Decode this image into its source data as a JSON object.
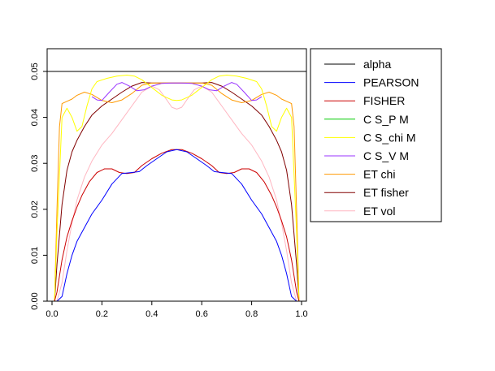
{
  "chart_data": {
    "type": "line",
    "title": "",
    "xlabel": "",
    "ylabel": "",
    "xlim": [
      0,
      1
    ],
    "ylim": [
      0,
      0.055
    ],
    "x_ticks": [
      "0.0",
      "0.2",
      "0.4",
      "0.6",
      "0.8",
      "1.0"
    ],
    "y_ticks": [
      "0.00",
      "0.01",
      "0.02",
      "0.03",
      "0.04",
      "0.05"
    ],
    "legend_position": "right",
    "grid": false,
    "hline": {
      "name": "alpha",
      "y": 0.05,
      "color": "#000000"
    },
    "series": [
      {
        "name": "alpha",
        "color": "#000000",
        "x": [
          0.0,
          1.0
        ],
        "y": [
          0.05,
          0.05
        ]
      },
      {
        "name": "PEARSON",
        "color": "#0000ff",
        "x": [
          0.0,
          0.02,
          0.04,
          0.06,
          0.08,
          0.1,
          0.13,
          0.16,
          0.2,
          0.24,
          0.28,
          0.32,
          0.35,
          0.38,
          0.42,
          0.46,
          0.5,
          0.54,
          0.58,
          0.62,
          0.65,
          0.68,
          0.72,
          0.76,
          0.8,
          0.84,
          0.87,
          0.9,
          0.92,
          0.94,
          0.96,
          0.98,
          1.0
        ],
        "y": [
          0.0,
          0.0,
          0.001,
          0.006,
          0.01,
          0.013,
          0.016,
          0.019,
          0.022,
          0.0255,
          0.0278,
          0.028,
          0.0282,
          0.0295,
          0.031,
          0.0325,
          0.033,
          0.0325,
          0.031,
          0.0295,
          0.0282,
          0.028,
          0.0278,
          0.0255,
          0.022,
          0.019,
          0.016,
          0.013,
          0.01,
          0.006,
          0.001,
          0.0,
          0.0
        ]
      },
      {
        "name": "FISHER",
        "color": "#cc0000",
        "x": [
          0.0,
          0.01,
          0.02,
          0.04,
          0.06,
          0.08,
          0.1,
          0.12,
          0.15,
          0.18,
          0.21,
          0.24,
          0.27,
          0.3,
          0.33,
          0.36,
          0.4,
          0.44,
          0.48,
          0.5,
          0.52,
          0.56,
          0.6,
          0.64,
          0.67,
          0.7,
          0.73,
          0.76,
          0.79,
          0.82,
          0.85,
          0.88,
          0.9,
          0.92,
          0.94,
          0.96,
          0.98,
          0.99,
          1.0
        ],
        "y": [
          0.0,
          0.0,
          0.002,
          0.009,
          0.014,
          0.0175,
          0.0205,
          0.023,
          0.026,
          0.028,
          0.0288,
          0.0288,
          0.028,
          0.0278,
          0.028,
          0.0295,
          0.031,
          0.0322,
          0.033,
          0.033,
          0.033,
          0.0322,
          0.031,
          0.0295,
          0.028,
          0.0278,
          0.028,
          0.0288,
          0.0288,
          0.028,
          0.026,
          0.023,
          0.0205,
          0.0175,
          0.014,
          0.009,
          0.002,
          0.0,
          0.0
        ]
      },
      {
        "name": "C S_P M",
        "color": "#00cc00",
        "x": [],
        "y": []
      },
      {
        "name": "C S_chi M",
        "color": "#ffff00",
        "x": [
          0.0,
          0.01,
          0.02,
          0.04,
          0.06,
          0.08,
          0.1,
          0.12,
          0.14,
          0.16,
          0.18,
          0.22,
          0.26,
          0.3,
          0.33,
          0.36,
          0.4,
          0.44,
          0.48,
          0.5,
          0.52,
          0.56,
          0.6,
          0.64,
          0.67,
          0.7,
          0.74,
          0.78,
          0.82,
          0.84,
          0.86,
          0.88,
          0.9,
          0.92,
          0.94,
          0.96,
          0.98,
          0.99,
          1.0
        ],
        "y": [
          0.0,
          0.0,
          0.015,
          0.04,
          0.042,
          0.04,
          0.037,
          0.038,
          0.0425,
          0.0462,
          0.0478,
          0.0485,
          0.049,
          0.0492,
          0.049,
          0.0482,
          0.0465,
          0.0448,
          0.0438,
          0.0437,
          0.0438,
          0.0448,
          0.0465,
          0.0482,
          0.049,
          0.0492,
          0.049,
          0.0485,
          0.0478,
          0.0462,
          0.0425,
          0.038,
          0.037,
          0.04,
          0.042,
          0.04,
          0.015,
          0.0,
          0.0
        ]
      },
      {
        "name": "C S_V M",
        "color": "#9933ff",
        "x": [
          0.16,
          0.18,
          0.2,
          0.23,
          0.26,
          0.28,
          0.31,
          0.34,
          0.37,
          0.4,
          0.44,
          0.48,
          0.5,
          0.52,
          0.56,
          0.6,
          0.63,
          0.66,
          0.69,
          0.72,
          0.74,
          0.77,
          0.8,
          0.82,
          0.84
        ],
        "y": [
          0.0445,
          0.0438,
          0.0437,
          0.0455,
          0.0472,
          0.0476,
          0.0468,
          0.0458,
          0.046,
          0.0468,
          0.0474,
          0.0475,
          0.0475,
          0.0475,
          0.0474,
          0.0468,
          0.046,
          0.0458,
          0.0468,
          0.0476,
          0.0472,
          0.0455,
          0.0437,
          0.0438,
          0.0445
        ]
      },
      {
        "name": "ET chi",
        "color": "#ff9900",
        "x": [
          0.0,
          0.01,
          0.02,
          0.03,
          0.04,
          0.06,
          0.08,
          0.1,
          0.13,
          0.16,
          0.2,
          0.24,
          0.28,
          0.32,
          0.36,
          0.4,
          0.44,
          0.48,
          0.5,
          0.52,
          0.56,
          0.6,
          0.64,
          0.68,
          0.72,
          0.76,
          0.8,
          0.84,
          0.87,
          0.9,
          0.92,
          0.94,
          0.96,
          0.97,
          0.98,
          0.99,
          1.0
        ],
        "y": [
          0.0,
          0.0,
          0.02,
          0.038,
          0.043,
          0.0435,
          0.044,
          0.0448,
          0.0455,
          0.045,
          0.0437,
          0.0432,
          0.0438,
          0.0452,
          0.047,
          0.0475,
          0.0475,
          0.0475,
          0.0475,
          0.0475,
          0.0475,
          0.0475,
          0.047,
          0.0452,
          0.0438,
          0.0432,
          0.0437,
          0.045,
          0.0455,
          0.0448,
          0.044,
          0.0435,
          0.043,
          0.038,
          0.02,
          0.0,
          0.0
        ]
      },
      {
        "name": "ET fisher",
        "color": "#800000",
        "x": [
          0.0,
          0.01,
          0.02,
          0.04,
          0.06,
          0.08,
          0.1,
          0.13,
          0.16,
          0.2,
          0.24,
          0.28,
          0.32,
          0.36,
          0.4,
          0.44,
          0.48,
          0.5,
          0.52,
          0.56,
          0.6,
          0.64,
          0.68,
          0.72,
          0.76,
          0.8,
          0.84,
          0.87,
          0.9,
          0.92,
          0.94,
          0.96,
          0.98,
          0.99,
          1.0
        ],
        "y": [
          0.0,
          0.0,
          0.008,
          0.021,
          0.0285,
          0.0325,
          0.035,
          0.038,
          0.0405,
          0.0425,
          0.044,
          0.0455,
          0.0468,
          0.0476,
          0.0475,
          0.0475,
          0.0475,
          0.0475,
          0.0475,
          0.0475,
          0.0475,
          0.0476,
          0.0468,
          0.0455,
          0.044,
          0.0425,
          0.0405,
          0.038,
          0.035,
          0.0325,
          0.0285,
          0.021,
          0.008,
          0.0,
          0.0
        ]
      },
      {
        "name": "ET vol",
        "color": "#ffb6c1",
        "x": [
          0.0,
          0.02,
          0.04,
          0.06,
          0.08,
          0.1,
          0.13,
          0.16,
          0.2,
          0.24,
          0.28,
          0.32,
          0.36,
          0.4,
          0.43,
          0.46,
          0.48,
          0.5,
          0.52,
          0.54,
          0.57,
          0.6,
          0.64,
          0.68,
          0.72,
          0.76,
          0.8,
          0.84,
          0.87,
          0.9,
          0.92,
          0.94,
          0.96,
          0.98,
          1.0
        ],
        "y": [
          0.0,
          0.0,
          0.004,
          0.011,
          0.017,
          0.022,
          0.027,
          0.0305,
          0.034,
          0.0365,
          0.0395,
          0.0425,
          0.0455,
          0.0468,
          0.046,
          0.0438,
          0.0422,
          0.0418,
          0.0422,
          0.0438,
          0.046,
          0.0468,
          0.0455,
          0.0425,
          0.0395,
          0.0365,
          0.034,
          0.0305,
          0.027,
          0.022,
          0.017,
          0.011,
          0.004,
          0.0,
          0.0
        ]
      }
    ]
  }
}
